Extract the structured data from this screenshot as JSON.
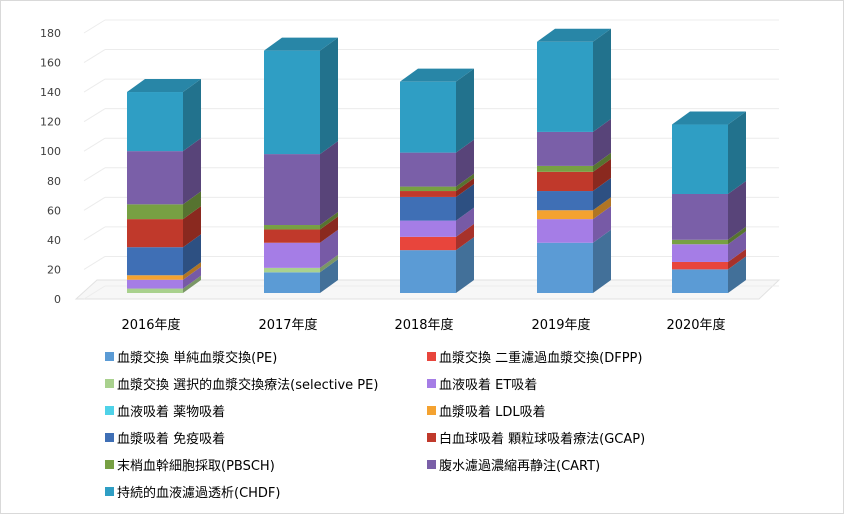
{
  "chart_data": {
    "type": "bar",
    "stacked": true,
    "three_d": true,
    "categories": [
      "2016年度",
      "2017年度",
      "2018年度",
      "2019年度",
      "2020年度"
    ],
    "ylim": [
      0,
      180
    ],
    "yticks": [
      0,
      20,
      40,
      60,
      80,
      100,
      120,
      140,
      160,
      180
    ],
    "grid": true,
    "legend_position": "bottom",
    "series": [
      {
        "name": "血漿交換 単純血漿交換(PE)",
        "color": "#5b9bd5",
        "values": [
          0,
          14,
          29,
          34,
          16
        ]
      },
      {
        "name": "血漿交換 二重濾過血漿交換(DFPP)",
        "color": "#e8453c",
        "values": [
          0,
          0,
          9,
          0,
          5
        ]
      },
      {
        "name": "血漿交換 選択的血漿交換療法(selective PE)",
        "color": "#a9d18e",
        "values": [
          3,
          3,
          0,
          0,
          0
        ]
      },
      {
        "name": "血液吸着 ET吸着",
        "color": "#a57de6",
        "values": [
          6,
          17,
          11,
          16,
          12
        ]
      },
      {
        "name": "血液吸着 薬物吸着",
        "color": "#4fd2e8",
        "values": [
          0,
          0,
          0,
          0,
          0
        ]
      },
      {
        "name": "血漿吸着 LDL吸着",
        "color": "#f4a230",
        "values": [
          3,
          0,
          0,
          6,
          0
        ]
      },
      {
        "name": "血漿吸着 免疫吸着",
        "color": "#3f6fb5",
        "values": [
          19,
          0,
          16,
          13,
          0
        ]
      },
      {
        "name": "白血球吸着 顆粒球吸着療法(GCAP)",
        "color": "#c0392b",
        "values": [
          19,
          9,
          4,
          13,
          0
        ]
      },
      {
        "name": "末梢血幹細胞採取(PBSCH)",
        "color": "#77a043",
        "values": [
          10,
          3,
          3,
          4,
          3
        ]
      },
      {
        "name": "腹水濾過濃縮再静注(CART)",
        "color": "#7a5fa8",
        "values": [
          36,
          48,
          23,
          23,
          31
        ]
      },
      {
        "name": "持続的血液濾過透析(CHDF)",
        "color": "#2f9ec4",
        "values": [
          40,
          70,
          48,
          61,
          47
        ]
      }
    ]
  }
}
